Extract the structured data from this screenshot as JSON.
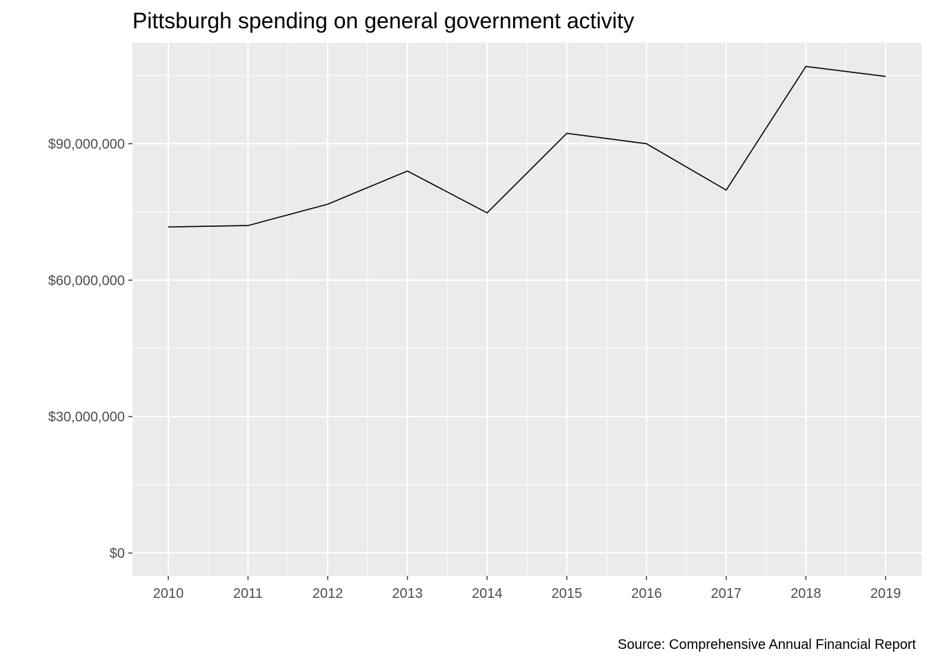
{
  "chart_data": {
    "type": "line",
    "title": "Pittsburgh spending on general government activity",
    "caption": "Source: Comprehensive Annual Financial Report",
    "xlabel": "",
    "ylabel": "",
    "x": [
      2010,
      2011,
      2012,
      2013,
      2014,
      2015,
      2016,
      2017,
      2018,
      2019
    ],
    "x_tick_labels": [
      "2010",
      "2011",
      "2012",
      "2013",
      "2014",
      "2015",
      "2016",
      "2017",
      "2018",
      "2019"
    ],
    "y_ticks": [
      0,
      30000000,
      60000000,
      90000000
    ],
    "y_tick_labels": [
      "$0",
      "$30,000,000",
      "$60,000,000",
      "$90,000,000"
    ],
    "series": [
      {
        "values": [
          71700000,
          72000000,
          76700000,
          84000000,
          74800000,
          92300000,
          90000000,
          79800000,
          107000000,
          104800000
        ]
      }
    ],
    "xlim": [
      2009.55,
      2019.45
    ],
    "ylim": [
      -5000000,
      112200000
    ],
    "grid": true,
    "legend": "none",
    "colors": {
      "panel": "#ebebeb",
      "grid": "#ffffff",
      "line": "#000000",
      "tick_text": "#4d4d4d"
    }
  }
}
